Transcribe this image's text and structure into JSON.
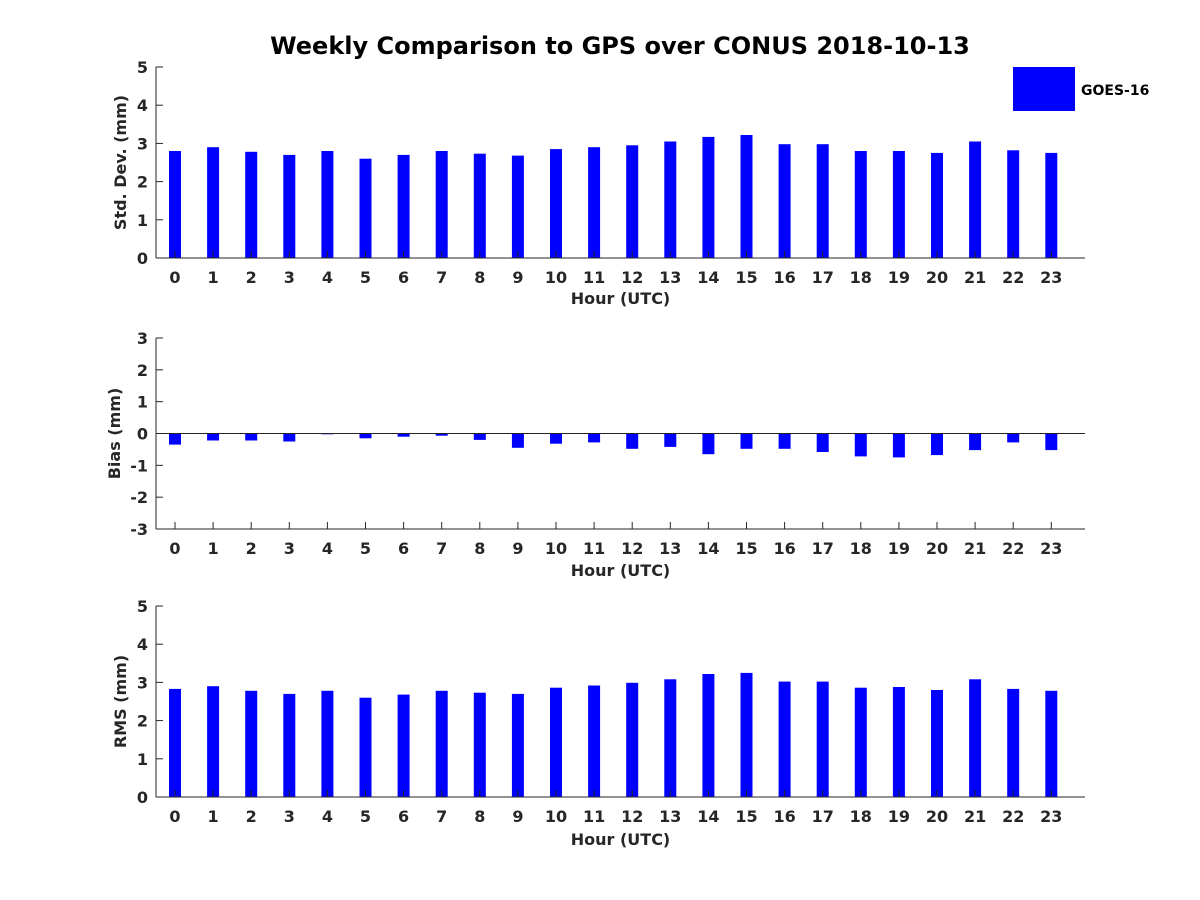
{
  "title": "Weekly Comparison to GPS over CONUS 2018-10-13",
  "legend": {
    "label": "GOES-16",
    "color": "#0000ff"
  },
  "chart_data": [
    {
      "type": "bar",
      "title": "Weekly Comparison to GPS over CONUS 2018-10-13",
      "xlabel": "Hour (UTC)",
      "ylabel": "Std. Dev. (mm)",
      "ylim": [
        0,
        5
      ],
      "yticks": [
        0,
        1,
        2,
        3,
        4,
        5
      ],
      "categories": [
        "0",
        "1",
        "2",
        "3",
        "4",
        "5",
        "6",
        "7",
        "8",
        "9",
        "10",
        "11",
        "12",
        "13",
        "14",
        "15",
        "16",
        "17",
        "18",
        "19",
        "20",
        "21",
        "22",
        "23"
      ],
      "series": [
        {
          "name": "GOES-16",
          "color": "#0000ff",
          "values": [
            2.8,
            2.9,
            2.78,
            2.7,
            2.8,
            2.6,
            2.7,
            2.8,
            2.73,
            2.68,
            2.85,
            2.9,
            2.95,
            3.05,
            3.17,
            3.22,
            2.98,
            2.98,
            2.8,
            2.8,
            2.75,
            3.05,
            2.82,
            2.75
          ]
        }
      ]
    },
    {
      "type": "bar",
      "title": "",
      "xlabel": "Hour (UTC)",
      "ylabel": "Bias (mm)",
      "ylim": [
        -3,
        3
      ],
      "yticks": [
        -3,
        -2,
        -1,
        0,
        1,
        2,
        3
      ],
      "categories": [
        "0",
        "1",
        "2",
        "3",
        "4",
        "5",
        "6",
        "7",
        "8",
        "9",
        "10",
        "11",
        "12",
        "13",
        "14",
        "15",
        "16",
        "17",
        "18",
        "19",
        "20",
        "21",
        "22",
        "23"
      ],
      "series": [
        {
          "name": "GOES-16",
          "color": "#0000ff",
          "values": [
            -0.35,
            -0.22,
            -0.22,
            -0.25,
            -0.02,
            -0.15,
            -0.1,
            -0.07,
            -0.2,
            -0.45,
            -0.32,
            -0.28,
            -0.48,
            -0.42,
            -0.65,
            -0.48,
            -0.48,
            -0.58,
            -0.72,
            -0.75,
            -0.68,
            -0.52,
            -0.28,
            -0.52
          ]
        }
      ]
    },
    {
      "type": "bar",
      "title": "",
      "xlabel": "Hour (UTC)",
      "ylabel": "RMS (mm)",
      "ylim": [
        0,
        5
      ],
      "yticks": [
        0,
        1,
        2,
        3,
        4,
        5
      ],
      "categories": [
        "0",
        "1",
        "2",
        "3",
        "4",
        "5",
        "6",
        "7",
        "8",
        "9",
        "10",
        "11",
        "12",
        "13",
        "14",
        "15",
        "16",
        "17",
        "18",
        "19",
        "20",
        "21",
        "22",
        "23"
      ],
      "series": [
        {
          "name": "GOES-16",
          "color": "#0000ff",
          "values": [
            2.83,
            2.9,
            2.78,
            2.7,
            2.78,
            2.6,
            2.68,
            2.78,
            2.73,
            2.7,
            2.86,
            2.92,
            2.99,
            3.08,
            3.22,
            3.25,
            3.02,
            3.02,
            2.86,
            2.88,
            2.8,
            3.08,
            2.83,
            2.78
          ]
        }
      ]
    }
  ]
}
